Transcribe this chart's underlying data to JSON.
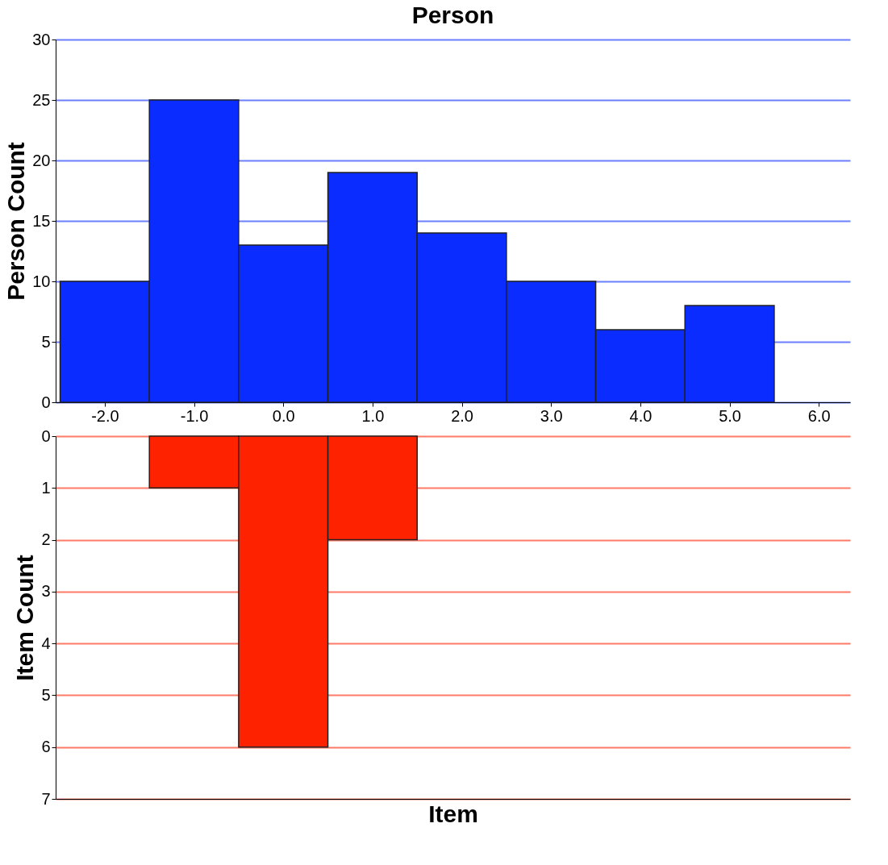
{
  "chart_data": [
    {
      "type": "histogram",
      "title": "Person",
      "ylabel": "Person Count",
      "bins": [
        -2.5,
        -1.5,
        -0.5,
        0.5,
        1.5,
        2.5,
        3.5,
        4.5,
        5.5
      ],
      "values": [
        10,
        25,
        13,
        19,
        14,
        10,
        6,
        8
      ],
      "color": "#0a2cff",
      "xlim": [
        -2.55,
        6.35
      ],
      "xticks": [
        {
          "value": -2,
          "label": "-2.0"
        },
        {
          "value": -1,
          "label": "-1.0"
        },
        {
          "value": 0,
          "label": "0.0"
        },
        {
          "value": 1,
          "label": "1.0"
        },
        {
          "value": 2,
          "label": "2.0"
        },
        {
          "value": 3,
          "label": "3.0"
        },
        {
          "value": 4,
          "label": "4.0"
        },
        {
          "value": 5,
          "label": "5.0"
        },
        {
          "value": 6,
          "label": "6.0"
        }
      ],
      "ylim": [
        0,
        30
      ],
      "yticks": [
        0,
        5,
        10,
        15,
        20,
        25,
        30
      ],
      "grid": "y"
    },
    {
      "type": "histogram",
      "xlabel": "Item",
      "ylabel": "Item Count",
      "bins": [
        -1.5,
        -0.5,
        0.5,
        1.5
      ],
      "values": [
        1,
        6,
        2
      ],
      "color": "#ff2200",
      "xlim": [
        -2.55,
        6.35
      ],
      "tick_labels": "y",
      "ylim": [
        7,
        0
      ],
      "yticks": [
        0,
        1,
        2,
        3,
        4,
        5,
        6,
        7
      ],
      "grid": "y"
    }
  ]
}
